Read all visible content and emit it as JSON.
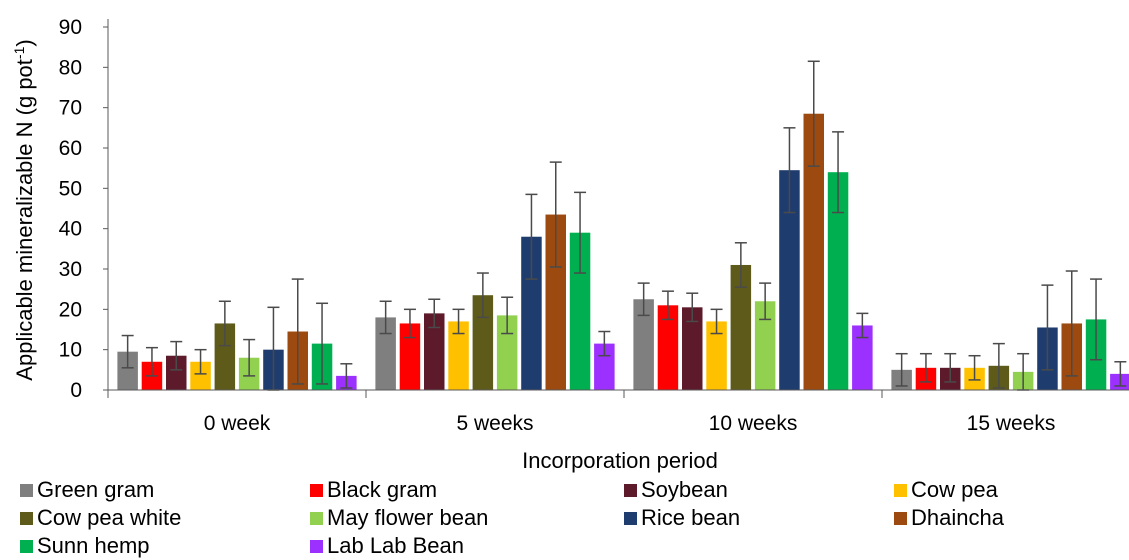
{
  "chart_data": {
    "type": "bar",
    "title": "",
    "xlabel": "Incorporation period",
    "ylabel": {
      "main": "Applicable mineralizable N (g pot",
      "sup": "-1",
      "close": ")"
    },
    "ylim": [
      0,
      90
    ],
    "yticks": [
      "0",
      "10",
      "20",
      "30",
      "40",
      "50",
      "60",
      "70",
      "80",
      "90"
    ],
    "grid": false,
    "legend_position": "bottom",
    "categories": [
      "0 week",
      "5 weeks",
      "10 weeks",
      "15 weeks"
    ],
    "series": [
      {
        "name": "Green gram",
        "color": "#7f7f7f",
        "values": [
          9.5,
          18,
          22.5,
          5
        ],
        "error": [
          4,
          4,
          4,
          4
        ]
      },
      {
        "name": "Black gram",
        "color": "#ff0000",
        "values": [
          7,
          16.5,
          21,
          5.5
        ],
        "error": [
          3.5,
          3.5,
          3.5,
          3.5
        ]
      },
      {
        "name": "Soybean",
        "color": "#5c1a2a",
        "values": [
          8.5,
          19,
          20.5,
          5.5
        ],
        "error": [
          3.5,
          3.5,
          3.5,
          3.5
        ]
      },
      {
        "name": "Cow pea",
        "color": "#ffc000",
        "values": [
          7,
          17,
          17,
          5.5
        ],
        "error": [
          3,
          3,
          3,
          3
        ]
      },
      {
        "name": "Cow pea white",
        "color": "#5e5a19",
        "values": [
          16.5,
          23.5,
          31,
          6
        ],
        "error": [
          5.5,
          5.5,
          5.5,
          5.5
        ]
      },
      {
        "name": "May flower bean",
        "color": "#92d050",
        "values": [
          8,
          18.5,
          22,
          4.5
        ],
        "error": [
          4.5,
          4.5,
          4.5,
          4.5
        ]
      },
      {
        "name": "Rice bean",
        "color": "#1f3c6e",
        "values": [
          10,
          38,
          54.5,
          15.5
        ],
        "error": [
          10.5,
          10.5,
          10.5,
          10.5
        ]
      },
      {
        "name": "Dhaincha",
        "color": "#9c4a10",
        "values": [
          14.5,
          43.5,
          68.5,
          16.5
        ],
        "error": [
          13,
          13,
          13,
          13
        ]
      },
      {
        "name": "Sunn hemp",
        "color": "#00b050",
        "values": [
          11.5,
          39,
          54,
          17.5
        ],
        "error": [
          10,
          10,
          10,
          10
        ]
      },
      {
        "name": "Lab Lab Bean",
        "color": "#9b30ff",
        "values": [
          3.5,
          11.5,
          16,
          4
        ],
        "error": [
          3,
          3,
          3,
          3
        ]
      }
    ]
  }
}
